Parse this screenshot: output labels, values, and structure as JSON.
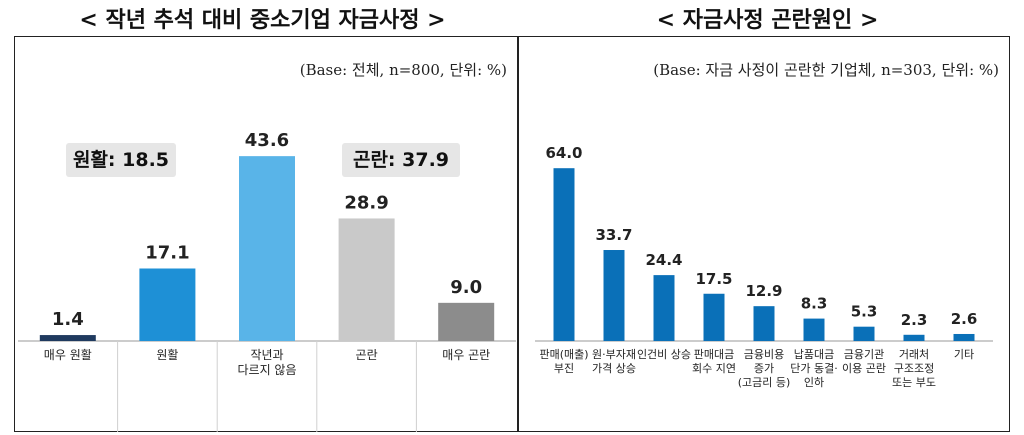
{
  "titles": {
    "left": "< 작년 추석 대비 중소기업 자금사정 >",
    "right": "< 자금사정 곤란원인 >"
  },
  "notes": {
    "left_base": "(Base: 전체, n=800, 단위: %)",
    "right_base": "(Base: 자금 사정이 곤란한 기업체, n=303, 단위: %)"
  },
  "summary": {
    "smooth": "원활: 18.5",
    "difficult": "곤란: 37.9"
  },
  "chart_data": [
    {
      "type": "bar",
      "title": "< 작년 추석 대비 중소기업 자금사정 >",
      "categories": [
        [
          "매우 원활"
        ],
        [
          "원활"
        ],
        [
          "작년과",
          "다르지 않음"
        ],
        [
          "곤란"
        ],
        [
          "매우 곤란"
        ]
      ],
      "values": [
        1.4,
        17.1,
        43.6,
        28.9,
        9.0
      ],
      "value_labels": [
        "1.4",
        "17.1",
        "43.6",
        "28.9",
        "9.0"
      ],
      "colors": [
        "#1f3a5f",
        "#1e90d6",
        "#59b4e8",
        "#c9c9c9",
        "#8c8c8c"
      ],
      "ylim": [
        0,
        50
      ],
      "grid": false,
      "legend": "none"
    },
    {
      "type": "bar",
      "title": "< 자금사정 곤란원인 >",
      "categories": [
        [
          "판매(매출)",
          "부진"
        ],
        [
          "원·부자재",
          "가격 상승"
        ],
        [
          "인건비 상승"
        ],
        [
          "판매대금",
          "회수 지연"
        ],
        [
          "금융비용",
          "증가",
          "(고금리 등)"
        ],
        [
          "납품대금",
          "단가 동결·",
          "인하"
        ],
        [
          "금융기관",
          "이용 곤란"
        ],
        [
          "거래처",
          "구조조정",
          "또는 부도"
        ],
        [
          "기타"
        ]
      ],
      "values": [
        64.0,
        33.7,
        24.4,
        17.5,
        12.9,
        8.3,
        5.3,
        2.3,
        2.6
      ],
      "value_labels": [
        "64.0",
        "33.7",
        "24.4",
        "17.5",
        "12.9",
        "8.3",
        "5.3",
        "2.3",
        "2.6"
      ],
      "colors": [
        "#0a70b8"
      ],
      "ylim": [
        0,
        70
      ],
      "grid": false,
      "legend": "none"
    }
  ]
}
